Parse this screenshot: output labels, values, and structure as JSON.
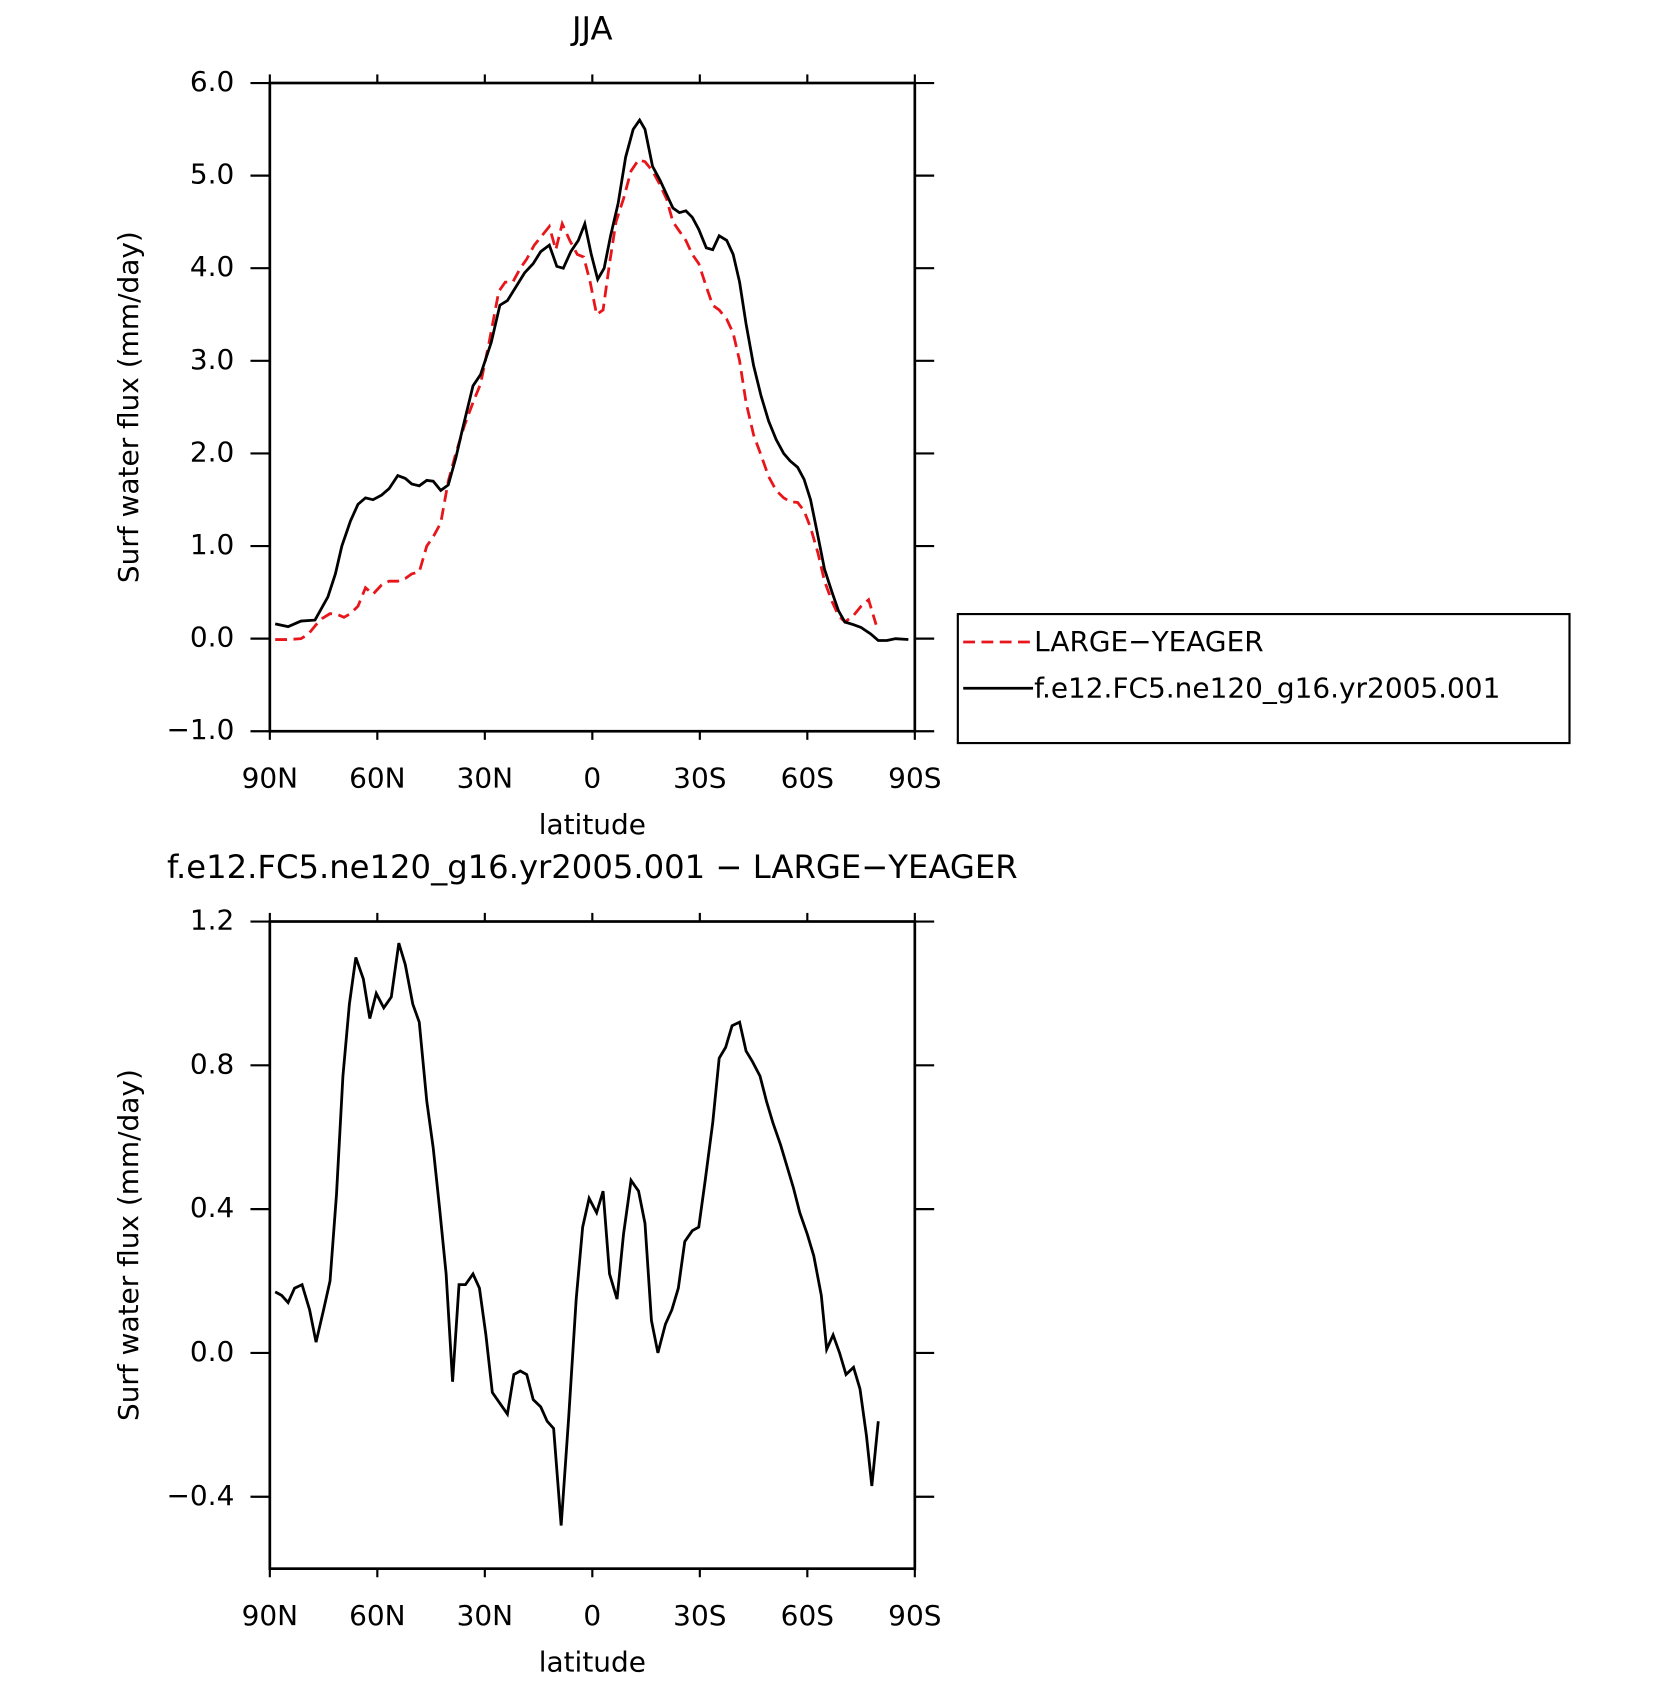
{
  "chart_data": [
    {
      "type": "line",
      "title": "JJA",
      "xlabel": "latitude",
      "ylabel": "Surf  water  flux  (mm/day)",
      "xlim": [
        90,
        -90
      ],
      "xticks": [
        {
          "value": 90,
          "label": "90N"
        },
        {
          "value": 60,
          "label": "60N"
        },
        {
          "value": 30,
          "label": "30N"
        },
        0,
        {
          "value": -30,
          "label": "30S"
        },
        {
          "value": -60,
          "label": "60S"
        },
        {
          "value": -90,
          "label": "90S"
        }
      ],
      "ylim": [
        -1,
        6
      ],
      "yticks": [
        {
          "value": -1,
          "label": "−1.0"
        },
        {
          "value": 0,
          "label": "0.0"
        },
        {
          "value": 1,
          "label": "1.0"
        },
        {
          "value": 2,
          "label": "2.0"
        },
        {
          "value": 3,
          "label": "3.0"
        },
        {
          "value": 4,
          "label": "4.0"
        },
        {
          "value": 5,
          "label": "5.0"
        },
        {
          "value": 6,
          "label": "6.0"
        }
      ],
      "legend": "right",
      "series": [
        {
          "name": "LARGE−YEAGER",
          "color": "#e8161b",
          "linestyle": "dashed",
          "x": [
            88.5,
            84.9,
            81.3,
            79.2,
            77.1,
            75.3,
            73.2,
            71.1,
            69.3,
            67.5,
            65.4,
            63.3,
            61.2,
            58.8,
            56.7,
            54.3,
            52.2,
            50.4,
            48.3,
            46.2,
            44.4,
            42.3,
            40.2,
            38.1,
            35.7,
            33.3,
            31.2,
            28.8,
            26.1,
            24.3,
            22.2,
            20.1,
            18.3,
            16.2,
            14.1,
            12.0,
            10.2,
            8.4,
            6.3,
            4.2,
            2.4,
            0.6,
            -1.2,
            -3.0,
            -4.8,
            -6.6,
            -8.7,
            -10.8,
            -12.9,
            -14.7,
            -16.8,
            -18.9,
            -20.7,
            -22.5,
            -24.3,
            -26.1,
            -27.9,
            -29.7,
            -31.8,
            -33.6,
            -35.4,
            -37.5,
            -39.3,
            -41.1,
            -42.9,
            -45.0,
            -47.1,
            -49.2,
            -51.3,
            -53.4,
            -55.2,
            -57.3,
            -59.1,
            -60.9,
            -63.0,
            -64.8,
            -66.9,
            -68.7,
            -70.5,
            -72.9,
            -75.0,
            -77.1,
            -79.2
          ],
          "values": [
            -0.01,
            -0.01,
            0,
            0.05,
            0.15,
            0.22,
            0.27,
            0.26,
            0.23,
            0.27,
            0.35,
            0.55,
            0.48,
            0.58,
            0.62,
            0.62,
            0.65,
            0.7,
            0.72,
            1.0,
            1.1,
            1.25,
            1.7,
            2.0,
            2.3,
            2.55,
            2.75,
            3.2,
            3.75,
            3.85,
            3.85,
            4.0,
            4.1,
            4.25,
            4.35,
            4.45,
            4.2,
            4.48,
            4.3,
            4.15,
            4.12,
            3.85,
            3.5,
            3.55,
            4.05,
            4.5,
            4.75,
            5.05,
            5.17,
            5.15,
            5.05,
            4.9,
            4.75,
            4.5,
            4.4,
            4.3,
            4.15,
            4.05,
            3.8,
            3.6,
            3.55,
            3.45,
            3.3,
            3.0,
            2.55,
            2.2,
            1.98,
            1.75,
            1.6,
            1.52,
            1.48,
            1.47,
            1.38,
            1.2,
            0.92,
            0.62,
            0.4,
            0.25,
            0.18,
            0.25,
            0.35,
            0.42,
            0.15
          ]
        },
        {
          "name": "f.e12.FC5.ne120_g16.yr2005.001",
          "color": "#000000",
          "linestyle": "solid",
          "x": [
            88.5,
            84.9,
            81.3,
            77.4,
            73.8,
            71.7,
            69.9,
            67.5,
            65.4,
            63.3,
            61.2,
            58.8,
            56.7,
            54.3,
            52.2,
            50.4,
            48.3,
            46.2,
            44.4,
            42.3,
            40.2,
            38.1,
            36.3,
            33.3,
            31.2,
            28.2,
            25.8,
            23.7,
            21.3,
            18.9,
            16.5,
            14.4,
            12.0,
            9.9,
            8.1,
            6.0,
            3.9,
            2.1,
            0.3,
            -1.5,
            -3.3,
            -5.1,
            -7.2,
            -9.3,
            -11.4,
            -13.2,
            -14.7,
            -16.8,
            -18.9,
            -20.7,
            -22.5,
            -24.3,
            -26.1,
            -27.9,
            -29.7,
            -31.8,
            -33.6,
            -35.4,
            -37.5,
            -39.3,
            -41.1,
            -42.9,
            -45.0,
            -47.1,
            -49.2,
            -51.3,
            -53.4,
            -55.2,
            -57.3,
            -59.1,
            -60.9,
            -63.0,
            -64.8,
            -66.9,
            -68.7,
            -70.5,
            -72.9,
            -75.0,
            -77.7,
            -79.8,
            -82.2,
            -84.6,
            -88.2
          ],
          "values": [
            0.16,
            0.13,
            0.19,
            0.2,
            0.45,
            0.7,
            1.0,
            1.27,
            1.45,
            1.52,
            1.5,
            1.55,
            1.62,
            1.76,
            1.73,
            1.67,
            1.65,
            1.71,
            1.7,
            1.6,
            1.66,
            1.95,
            2.25,
            2.73,
            2.85,
            3.2,
            3.6,
            3.65,
            3.8,
            3.95,
            4.05,
            4.18,
            4.25,
            4.02,
            4.0,
            4.18,
            4.3,
            4.48,
            4.15,
            3.88,
            4.0,
            4.35,
            4.7,
            5.2,
            5.5,
            5.6,
            5.5,
            5.1,
            4.95,
            4.8,
            4.65,
            4.6,
            4.62,
            4.55,
            4.42,
            4.22,
            4.2,
            4.35,
            4.3,
            4.15,
            3.85,
            3.4,
            2.95,
            2.62,
            2.35,
            2.15,
            2.0,
            1.92,
            1.85,
            1.72,
            1.5,
            1.1,
            0.75,
            0.5,
            0.3,
            0.18,
            0.15,
            0.12,
            0.05,
            -0.02,
            -0.02,
            0,
            -0.01
          ]
        }
      ]
    },
    {
      "type": "line",
      "title": "f.e12.FC5.ne120_g16.yr2005.001 − LARGE−YEAGER",
      "xlabel": "latitude",
      "ylabel": "Surf  water  flux  (mm/day)",
      "xlim": [
        90,
        -90
      ],
      "xticks": [
        {
          "value": 90,
          "label": "90N"
        },
        {
          "value": 60,
          "label": "60N"
        },
        {
          "value": 30,
          "label": "30N"
        },
        0,
        {
          "value": -30,
          "label": "30S"
        },
        {
          "value": -60,
          "label": "60S"
        },
        {
          "value": -90,
          "label": "90S"
        }
      ],
      "ylim": [
        -0.6,
        1.2
      ],
      "yticks": [
        {
          "value": -0.4,
          "label": "−0.4"
        },
        {
          "value": 0,
          "label": "0.0"
        },
        0.4,
        0.8,
        1.2
      ],
      "series": [
        {
          "color": "#000000",
          "linestyle": "solid",
          "x": [
            88.5,
            86.7,
            84.9,
            83.1,
            81.0,
            78.9,
            77.1,
            75.0,
            73.2,
            71.4,
            69.6,
            67.8,
            66.0,
            63.9,
            62.1,
            60.3,
            58.2,
            56.1,
            54.0,
            52.2,
            50.1,
            48.3,
            46.2,
            44.4,
            42.6,
            40.8,
            39.0,
            37.2,
            35.4,
            33.3,
            31.5,
            29.7,
            27.9,
            25.8,
            23.7,
            21.9,
            20.1,
            18.3,
            16.5,
            14.4,
            12.6,
            10.8,
            8.7,
            6.6,
            4.5,
            2.7,
            0.9,
            -1.2,
            -3.0,
            -4.8,
            -6.9,
            -8.7,
            -10.8,
            -12.9,
            -14.7,
            -16.5,
            -18.3,
            -20.4,
            -22.2,
            -24.0,
            -25.8,
            -27.9,
            -29.7,
            -31.5,
            -33.6,
            -35.4,
            -37.2,
            -39.0,
            -41.1,
            -42.9,
            -44.7,
            -46.8,
            -48.6,
            -50.4,
            -52.5,
            -54.3,
            -56.1,
            -57.9,
            -60.0,
            -61.8,
            -63.9,
            -65.4,
            -67.2,
            -69.0,
            -70.8,
            -72.9,
            -74.7,
            -76.5,
            -78.0,
            -79.8
          ],
          "values": [
            0.17,
            0.16,
            0.14,
            0.18,
            0.19,
            0.12,
            0.03,
            0.12,
            0.2,
            0.44,
            0.77,
            0.97,
            1.1,
            1.04,
            0.93,
            1.0,
            0.96,
            0.99,
            1.14,
            1.08,
            0.97,
            0.92,
            0.7,
            0.57,
            0.4,
            0.22,
            -0.08,
            0.19,
            0.19,
            0.22,
            0.18,
            0.05,
            -0.11,
            -0.14,
            -0.17,
            -0.06,
            -0.05,
            -0.06,
            -0.13,
            -0.15,
            -0.19,
            -0.21,
            -0.48,
            -0.18,
            0.15,
            0.35,
            0.43,
            0.39,
            0.45,
            0.22,
            0.15,
            0.33,
            0.48,
            0.45,
            0.36,
            0.09,
            0.0,
            0.08,
            0.12,
            0.18,
            0.31,
            0.34,
            0.35,
            0.48,
            0.64,
            0.82,
            0.85,
            0.91,
            0.92,
            0.84,
            0.81,
            0.77,
            0.7,
            0.64,
            0.58,
            0.52,
            0.46,
            0.39,
            0.33,
            0.27,
            0.16,
            0.01,
            0.05,
            0.0,
            -0.06,
            -0.04,
            -0.1,
            -0.23,
            -0.37,
            -0.19
          ]
        }
      ]
    }
  ]
}
